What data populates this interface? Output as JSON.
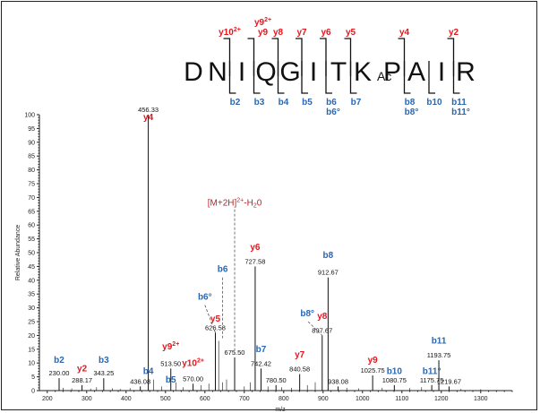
{
  "chart_data": {
    "type": "bar",
    "xlabel": "m/z",
    "ylabel": "Relative Abundance",
    "xlim": [
      180,
      1380
    ],
    "ylim": [
      0,
      100
    ],
    "x_ticks": [
      200,
      300,
      400,
      500,
      600,
      700,
      800,
      900,
      1000,
      1100,
      1200,
      1300
    ],
    "y_ticks": [
      0,
      5,
      10,
      15,
      20,
      25,
      30,
      35,
      40,
      45,
      50,
      55,
      60,
      65,
      70,
      75,
      80,
      85,
      90,
      95,
      100
    ],
    "peaks": [
      {
        "mz": 230.0,
        "intensity": 4.5,
        "label": "230.00"
      },
      {
        "mz": 288.17,
        "intensity": 2.0,
        "label": "288.17"
      },
      {
        "mz": 343.25,
        "intensity": 4.5,
        "label": "343.25"
      },
      {
        "mz": 436.08,
        "intensity": 1.5,
        "label": "436.08"
      },
      {
        "mz": 456.33,
        "intensity": 100,
        "label": "456.33"
      },
      {
        "mz": 513.5,
        "intensity": 8.0,
        "label": "513.50"
      },
      {
        "mz": 570.0,
        "intensity": 2.5,
        "label": "570.00"
      },
      {
        "mz": 626.58,
        "intensity": 21.0,
        "label": "626.58"
      },
      {
        "mz": 675.5,
        "intensity": 12.0,
        "label": "675.50"
      },
      {
        "mz": 727.58,
        "intensity": 45.0,
        "label": "727.58"
      },
      {
        "mz": 742.42,
        "intensity": 8.0,
        "label": "742.42"
      },
      {
        "mz": 780.5,
        "intensity": 2.0,
        "label": "780.50"
      },
      {
        "mz": 840.58,
        "intensity": 6.0,
        "label": "840.58"
      },
      {
        "mz": 897.67,
        "intensity": 20.0,
        "label": "897.67"
      },
      {
        "mz": 912.67,
        "intensity": 41.0,
        "label": "912.67"
      },
      {
        "mz": 938.08,
        "intensity": 1.5,
        "label": "938.08"
      },
      {
        "mz": 1025.75,
        "intensity": 5.5,
        "label": "1025.75"
      },
      {
        "mz": 1080.75,
        "intensity": 2.0,
        "label": "1080.75"
      },
      {
        "mz": 1175.75,
        "intensity": 2.0,
        "label": "1175.75"
      },
      {
        "mz": 1193.75,
        "intensity": 11.0,
        "label": "1193.75"
      },
      {
        "mz": 1219.67,
        "intensity": 1.5,
        "label": "1219.67"
      }
    ],
    "minor_peaks": [
      {
        "mz": 240,
        "intensity": 1.0
      },
      {
        "mz": 262,
        "intensity": 0.8
      },
      {
        "mz": 310,
        "intensity": 0.7
      },
      {
        "mz": 325,
        "intensity": 1.2
      },
      {
        "mz": 365,
        "intensity": 0.8
      },
      {
        "mz": 385,
        "intensity": 0.6
      },
      {
        "mz": 410,
        "intensity": 0.9
      },
      {
        "mz": 470,
        "intensity": 4.0
      },
      {
        "mz": 490,
        "intensity": 1.5
      },
      {
        "mz": 527,
        "intensity": 3.0
      },
      {
        "mz": 545,
        "intensity": 1.2
      },
      {
        "mz": 590,
        "intensity": 2.0
      },
      {
        "mz": 610,
        "intensity": 2.5
      },
      {
        "mz": 635,
        "intensity": 18.0
      },
      {
        "mz": 645,
        "intensity": 3.0
      },
      {
        "mz": 655,
        "intensity": 4.0
      },
      {
        "mz": 700,
        "intensity": 1.5
      },
      {
        "mz": 715,
        "intensity": 3.0
      },
      {
        "mz": 760,
        "intensity": 1.5
      },
      {
        "mz": 795,
        "intensity": 1.2
      },
      {
        "mz": 820,
        "intensity": 1.0
      },
      {
        "mz": 860,
        "intensity": 2.0
      },
      {
        "mz": 880,
        "intensity": 3.0
      },
      {
        "mz": 960,
        "intensity": 1.0
      },
      {
        "mz": 990,
        "intensity": 0.8
      },
      {
        "mz": 1050,
        "intensity": 1.0
      },
      {
        "mz": 1120,
        "intensity": 0.9
      },
      {
        "mz": 1150,
        "intensity": 1.2
      },
      {
        "mz": 1250,
        "intensity": 0.6
      },
      {
        "mz": 1300,
        "intensity": 0.5
      }
    ],
    "ion_annotations": [
      {
        "id": "b2",
        "series": "b",
        "mz": 230.0,
        "level": 10
      },
      {
        "id": "y2",
        "series": "y",
        "mz": 288.17,
        "level": 7
      },
      {
        "id": "b3",
        "series": "b",
        "mz": 343.25,
        "level": 10
      },
      {
        "id": "b4",
        "series": "b",
        "mz": 456.33,
        "level": 6
      },
      {
        "id": "y4",
        "series": "y",
        "mz": 456.33,
        "level": 98
      },
      {
        "id": "b5",
        "series": "b",
        "mz": 513.5,
        "level": 3
      },
      {
        "id": "y9_2",
        "series": "y",
        "mz": 513.5,
        "level": 15
      },
      {
        "id": "y10_2",
        "series": "y",
        "mz": 570.0,
        "level": 9
      },
      {
        "id": "y5",
        "series": "y",
        "mz": 626.58,
        "level": 25
      },
      {
        "id": "b6",
        "series": "b",
        "mz": 645.0,
        "level": 43
      },
      {
        "id": "b6o",
        "series": "b",
        "mz": 600.0,
        "level": 33
      },
      {
        "id": "y6",
        "series": "y",
        "mz": 727.58,
        "level": 51
      },
      {
        "id": "b7",
        "series": "b",
        "mz": 742.42,
        "level": 14
      },
      {
        "id": "y7",
        "series": "y",
        "mz": 840.58,
        "level": 12
      },
      {
        "id": "b8o",
        "series": "b",
        "mz": 860.0,
        "level": 27
      },
      {
        "id": "y8",
        "series": "y",
        "mz": 897.67,
        "level": 26
      },
      {
        "id": "b8",
        "series": "b",
        "mz": 912.67,
        "level": 48
      },
      {
        "id": "y9",
        "series": "y",
        "mz": 1025.75,
        "level": 10
      },
      {
        "id": "b10",
        "series": "b",
        "mz": 1080.75,
        "level": 6
      },
      {
        "id": "b11o",
        "series": "b",
        "mz": 1175.75,
        "level": 6
      },
      {
        "id": "b11",
        "series": "b",
        "mz": 1193.75,
        "level": 17
      }
    ],
    "precursor_annotation": {
      "mz": 675.5,
      "level": 67,
      "base": "[M+2H]",
      "sup": "2+",
      "suffix": "-H",
      "sub": "2",
      "tail": "0"
    }
  },
  "sequence": {
    "residues": [
      "D",
      "N",
      "I",
      "Q",
      "G",
      "I",
      "T",
      "K",
      "P",
      "A",
      "I",
      "R"
    ],
    "modification": "Ac",
    "y_labels": [
      {
        "text": "y10",
        "sup": "2+",
        "after": 1
      },
      {
        "text": "y9",
        "sup": "2+",
        "after": 2,
        "stacked": true
      },
      {
        "text": "y8",
        "after": 3
      },
      {
        "text": "y7",
        "after": 4
      },
      {
        "text": "y6",
        "after": 5
      },
      {
        "text": "y5",
        "after": 6
      },
      {
        "text": "y4",
        "after": 8
      },
      {
        "text": "y2",
        "after": 10
      }
    ],
    "b_labels": [
      {
        "text": "b2",
        "after": 1
      },
      {
        "text": "b3",
        "after": 2
      },
      {
        "text": "b4",
        "after": 3
      },
      {
        "text": "b5",
        "after": 4
      },
      {
        "text": "b6",
        "sub2": "b6°",
        "after": 5
      },
      {
        "text": "b7",
        "after": 6
      },
      {
        "text": "b8",
        "sub2": "b8°",
        "after": 8
      },
      {
        "text": "b10",
        "after": 9
      },
      {
        "text": "b11",
        "sub2": "b11°",
        "after": 10
      }
    ]
  }
}
